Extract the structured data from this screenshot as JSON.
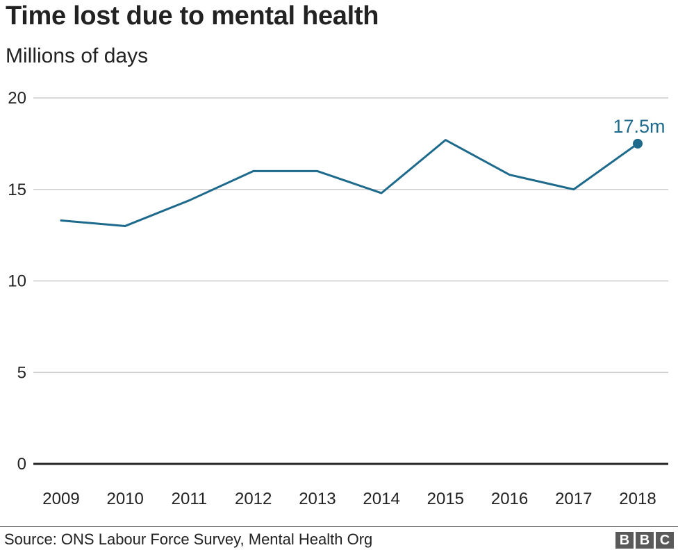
{
  "chart_data": {
    "type": "line",
    "title": "Time lost due to mental health",
    "subtitle": "Millions of days",
    "x": [
      "2009",
      "2010",
      "2011",
      "2012",
      "2013",
      "2014",
      "2015",
      "2016",
      "2017",
      "2018"
    ],
    "series": [
      {
        "values": [
          13.3,
          13.0,
          14.4,
          16.0,
          16.0,
          14.8,
          17.7,
          15.8,
          15.0,
          17.5
        ]
      }
    ],
    "ylim": [
      0,
      20
    ],
    "yticks": [
      "0",
      "5",
      "10",
      "15",
      "20"
    ],
    "grid": true,
    "annotation": {
      "label": "17.5m",
      "index": 9
    },
    "colors": {
      "line": "#1d6a8c",
      "grid": "#cccccc",
      "baseline": "#222222"
    }
  },
  "source": "Source: ONS Labour Force Survey, Mental Health Org",
  "logo": {
    "letters": [
      "B",
      "B",
      "C"
    ]
  }
}
